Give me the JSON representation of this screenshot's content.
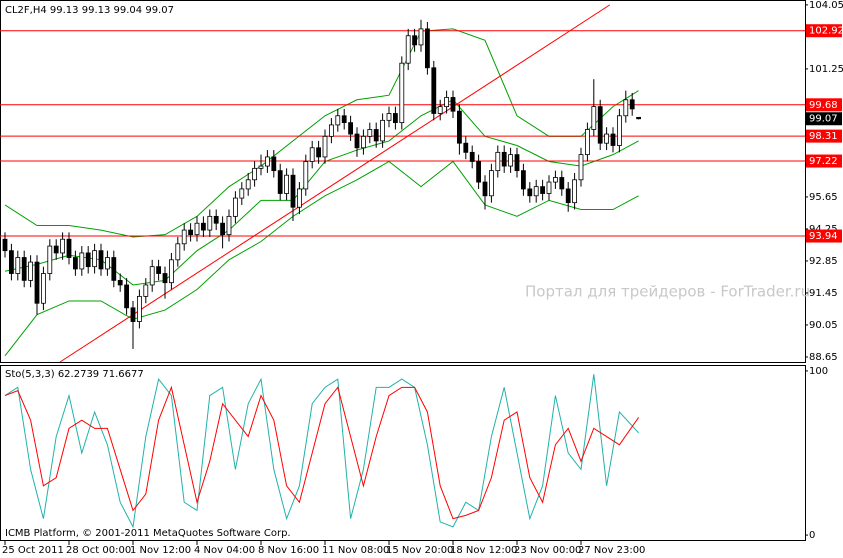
{
  "chart_data": [
    {
      "type": "candlestick",
      "title": "CL2F,H4  99.13 99.13 99.04 99.07",
      "watermark": "Портал для трейдеров - ForTrader.ru",
      "categories": [
        "25 Oct 2011",
        null,
        null,
        null,
        null,
        null,
        null,
        null,
        null,
        null,
        "28 Oct 00:00",
        null,
        null,
        null,
        null,
        null,
        null,
        null,
        null,
        null,
        "1 Nov 12:00",
        null,
        null,
        null,
        null,
        null,
        null,
        null,
        null,
        null,
        "4 Nov 04:00",
        null,
        null,
        null,
        null,
        null,
        null,
        null,
        null,
        null,
        "8 Nov 16:00",
        null,
        null,
        null,
        null,
        null,
        null,
        null,
        null,
        null,
        "11 Nov 08:00",
        null,
        null,
        null,
        null,
        null,
        null,
        null,
        null,
        null,
        "15 Nov 20:00",
        null,
        null,
        null,
        null,
        null,
        null,
        null,
        null,
        null,
        "18 Nov 12:00",
        null,
        null,
        null,
        null,
        null,
        null,
        null,
        null,
        null,
        "23 Nov 00:00",
        null,
        null,
        null,
        null,
        null,
        null,
        null,
        null,
        null,
        "27 Nov 23:00",
        null,
        null,
        null,
        null,
        null,
        null,
        null,
        null,
        null
      ],
      "open": [
        93.8,
        93.3,
        92.3,
        93.0,
        92.0,
        92.8,
        91.0,
        92.3,
        93.5,
        93.2,
        93.8,
        93.0,
        92.5,
        93.2,
        92.6,
        93.3,
        92.5,
        93.0,
        92.0,
        91.8,
        90.8,
        90.2,
        91.3,
        91.8,
        92.6,
        92.3,
        91.9,
        92.9,
        93.6,
        94.2,
        94.0,
        94.5,
        94.2,
        94.8,
        94.5,
        94.0,
        94.8,
        95.6,
        96.0,
        96.4,
        96.9,
        97.0,
        97.4,
        96.8,
        95.8,
        96.6,
        95.2,
        96.0,
        97.2,
        97.8,
        97.4,
        98.3,
        98.8,
        99.2,
        98.9,
        98.4,
        97.8,
        98.3,
        98.6,
        98.1,
        99.0,
        99.3,
        98.9,
        101.5,
        102.7,
        102.3,
        103.0,
        101.3,
        99.3,
        99.6,
        100.0,
        99.4,
        98.0,
        97.6,
        97.2,
        96.3,
        95.7,
        96.8,
        97.6,
        97.0,
        97.5,
        96.8,
        96.0,
        95.7,
        96.1,
        95.8,
        96.3,
        96.5,
        96.0,
        95.4,
        96.4,
        97.5,
        98.6,
        99.6,
        98.0,
        98.4,
        97.9,
        99.2,
        99.9,
        99.13
      ],
      "high": [
        94.1,
        93.6,
        93.3,
        93.3,
        93.1,
        93.1,
        92.6,
        93.8,
        93.8,
        94.1,
        94.1,
        93.3,
        93.5,
        93.5,
        93.6,
        93.6,
        93.3,
        93.3,
        92.3,
        92.1,
        91.1,
        91.6,
        92.1,
        92.9,
        92.9,
        92.6,
        93.2,
        93.9,
        94.5,
        94.5,
        94.8,
        94.8,
        95.1,
        95.1,
        94.8,
        95.1,
        95.9,
        96.3,
        96.7,
        97.2,
        97.5,
        97.7,
        97.7,
        97.1,
        96.9,
        96.9,
        96.3,
        97.5,
        98.1,
        98.1,
        98.6,
        99.1,
        99.5,
        99.5,
        99.2,
        98.7,
        98.6,
        98.9,
        98.9,
        99.3,
        99.6,
        99.6,
        101.8,
        103.0,
        103.0,
        103.4,
        103.3,
        101.6,
        99.9,
        100.3,
        100.3,
        99.7,
        98.3,
        97.9,
        97.5,
        96.6,
        97.1,
        97.9,
        97.9,
        97.8,
        97.8,
        97.1,
        96.3,
        96.4,
        96.4,
        96.6,
        96.8,
        96.8,
        96.3,
        96.7,
        97.8,
        98.9,
        100.8,
        99.9,
        98.7,
        98.7,
        99.5,
        100.3,
        100.2,
        99.13
      ],
      "low": [
        93.0,
        92.0,
        92.0,
        91.7,
        91.7,
        90.5,
        90.7,
        92.0,
        92.9,
        92.9,
        92.7,
        92.2,
        92.2,
        92.3,
        92.3,
        92.2,
        92.2,
        91.7,
        91.5,
        90.5,
        89.0,
        89.9,
        91.0,
        91.5,
        92.0,
        91.2,
        91.6,
        92.6,
        93.3,
        93.7,
        93.7,
        93.9,
        93.9,
        94.2,
        93.4,
        93.7,
        94.5,
        95.3,
        95.7,
        96.1,
        96.6,
        96.7,
        96.5,
        95.5,
        95.5,
        94.6,
        94.9,
        95.7,
        96.9,
        97.1,
        97.1,
        98.0,
        98.5,
        98.6,
        98.1,
        97.4,
        97.5,
        98.0,
        97.8,
        97.8,
        98.7,
        98.6,
        98.6,
        101.2,
        102.0,
        102.0,
        101.0,
        99.0,
        99.0,
        99.3,
        99.1,
        97.5,
        97.3,
        96.9,
        96.0,
        95.1,
        95.4,
        96.5,
        96.7,
        96.7,
        96.5,
        95.7,
        95.4,
        95.4,
        95.5,
        95.5,
        96.0,
        95.7,
        95.0,
        95.1,
        96.1,
        97.2,
        98.3,
        97.7,
        97.7,
        97.6,
        97.6,
        98.9,
        99.2,
        99.04
      ],
      "close": [
        93.3,
        92.3,
        93.0,
        92.0,
        92.8,
        91.0,
        92.3,
        93.5,
        93.2,
        93.8,
        93.0,
        92.5,
        93.2,
        92.6,
        93.3,
        92.5,
        93.0,
        92.0,
        91.8,
        90.8,
        90.2,
        91.3,
        91.8,
        92.6,
        92.3,
        91.9,
        92.9,
        93.6,
        94.2,
        94.0,
        94.5,
        94.2,
        94.8,
        94.5,
        94.0,
        94.8,
        95.6,
        96.0,
        96.4,
        96.9,
        97.0,
        97.4,
        96.8,
        95.8,
        96.6,
        95.2,
        96.0,
        97.2,
        97.8,
        97.4,
        98.3,
        98.8,
        99.2,
        98.9,
        98.4,
        97.8,
        98.3,
        98.6,
        98.1,
        99.0,
        99.3,
        98.9,
        101.5,
        102.7,
        102.3,
        103.0,
        101.3,
        99.3,
        99.6,
        100.0,
        99.4,
        98.0,
        97.6,
        97.2,
        96.3,
        95.7,
        96.8,
        97.6,
        97.0,
        97.5,
        96.8,
        96.0,
        95.7,
        96.1,
        95.8,
        96.3,
        96.5,
        96.0,
        95.4,
        96.4,
        97.5,
        98.6,
        99.6,
        98.0,
        98.4,
        97.9,
        99.2,
        99.9,
        99.5,
        99.07
      ],
      "ylim": [
        88.43,
        104.22
      ],
      "yticks": [
        88.65,
        90.05,
        91.45,
        92.85,
        94.25,
        95.65,
        101.25,
        104.05
      ],
      "up_color": "#ffffff",
      "down_color": "#000000",
      "bands": {
        "color": "#00a000",
        "x": [
          0,
          5,
          10,
          15,
          20,
          25,
          30,
          35,
          40,
          45,
          50,
          55,
          60,
          65,
          70,
          75,
          80,
          85,
          90,
          95,
          99
        ],
        "upper": [
          95.3,
          94.4,
          94.4,
          94.2,
          93.9,
          94.0,
          94.8,
          96.1,
          97.0,
          98.1,
          99.2,
          99.9,
          100.1,
          102.9,
          103.0,
          102.5,
          99.2,
          98.3,
          98.3,
          99.6,
          100.3
        ],
        "middle": [
          92.4,
          92.7,
          93.1,
          92.9,
          91.8,
          92.0,
          93.3,
          94.2,
          95.5,
          95.5,
          97.2,
          97.7,
          98.1,
          99.2,
          99.9,
          98.3,
          97.9,
          97.2,
          97.0,
          97.5,
          98.1
        ],
        "lower": [
          88.7,
          90.5,
          91.1,
          91.1,
          90.3,
          90.7,
          91.6,
          92.9,
          93.7,
          94.8,
          95.7,
          96.4,
          97.2,
          96.1,
          97.2,
          95.3,
          94.8,
          95.5,
          95.1,
          95.1,
          95.7
        ]
      },
      "levels": {
        "color": "#ff0000",
        "values": [
          102.92,
          99.68,
          98.31,
          97.22,
          93.94
        ]
      },
      "last_price": 99.07,
      "trendline": {
        "color": "#ff0000",
        "x": [
          8.6,
          94.5
        ],
        "y": [
          88.43,
          104.05
        ]
      }
    },
    {
      "type": "line",
      "title": "Sto(5,3,3) 62.2739 71.6677",
      "footer": "ICMB Platform, © 2001-2011 MetaQuotes Software Corp.",
      "x": [
        0,
        2,
        4,
        6,
        8,
        10,
        12,
        14,
        16,
        18,
        20,
        22,
        24,
        26,
        28,
        30,
        32,
        34,
        36,
        38,
        40,
        42,
        44,
        46,
        48,
        50,
        52,
        54,
        56,
        58,
        60,
        62,
        64,
        66,
        68,
        70,
        72,
        74,
        76,
        78,
        80,
        82,
        84,
        86,
        88,
        90,
        92,
        94,
        96,
        99
      ],
      "series": [
        {
          "color": "#20b2aa",
          "values": [
            85,
            90,
            40,
            10,
            60,
            85,
            50,
            75,
            55,
            20,
            5,
            60,
            95,
            85,
            20,
            15,
            85,
            90,
            40,
            80,
            95,
            40,
            10,
            30,
            80,
            90,
            95,
            10,
            40,
            90,
            90,
            95,
            90,
            55,
            8,
            5,
            20,
            15,
            60,
            90,
            50,
            10,
            30,
            85,
            50,
            40,
            98,
            30,
            75,
            62.2739
          ]
        },
        {
          "color": "#ff0000",
          "values": [
            85,
            88,
            70,
            30,
            35,
            65,
            70,
            65,
            65,
            40,
            15,
            25,
            70,
            90,
            55,
            20,
            45,
            80,
            70,
            60,
            85,
            70,
            30,
            20,
            50,
            80,
            90,
            60,
            30,
            60,
            85,
            90,
            90,
            75,
            30,
            10,
            12,
            15,
            35,
            70,
            75,
            35,
            20,
            55,
            65,
            45,
            65,
            60,
            55,
            71.6677
          ]
        }
      ],
      "ylim": [
        -3,
        103
      ],
      "yticks": [
        0,
        100
      ]
    }
  ]
}
